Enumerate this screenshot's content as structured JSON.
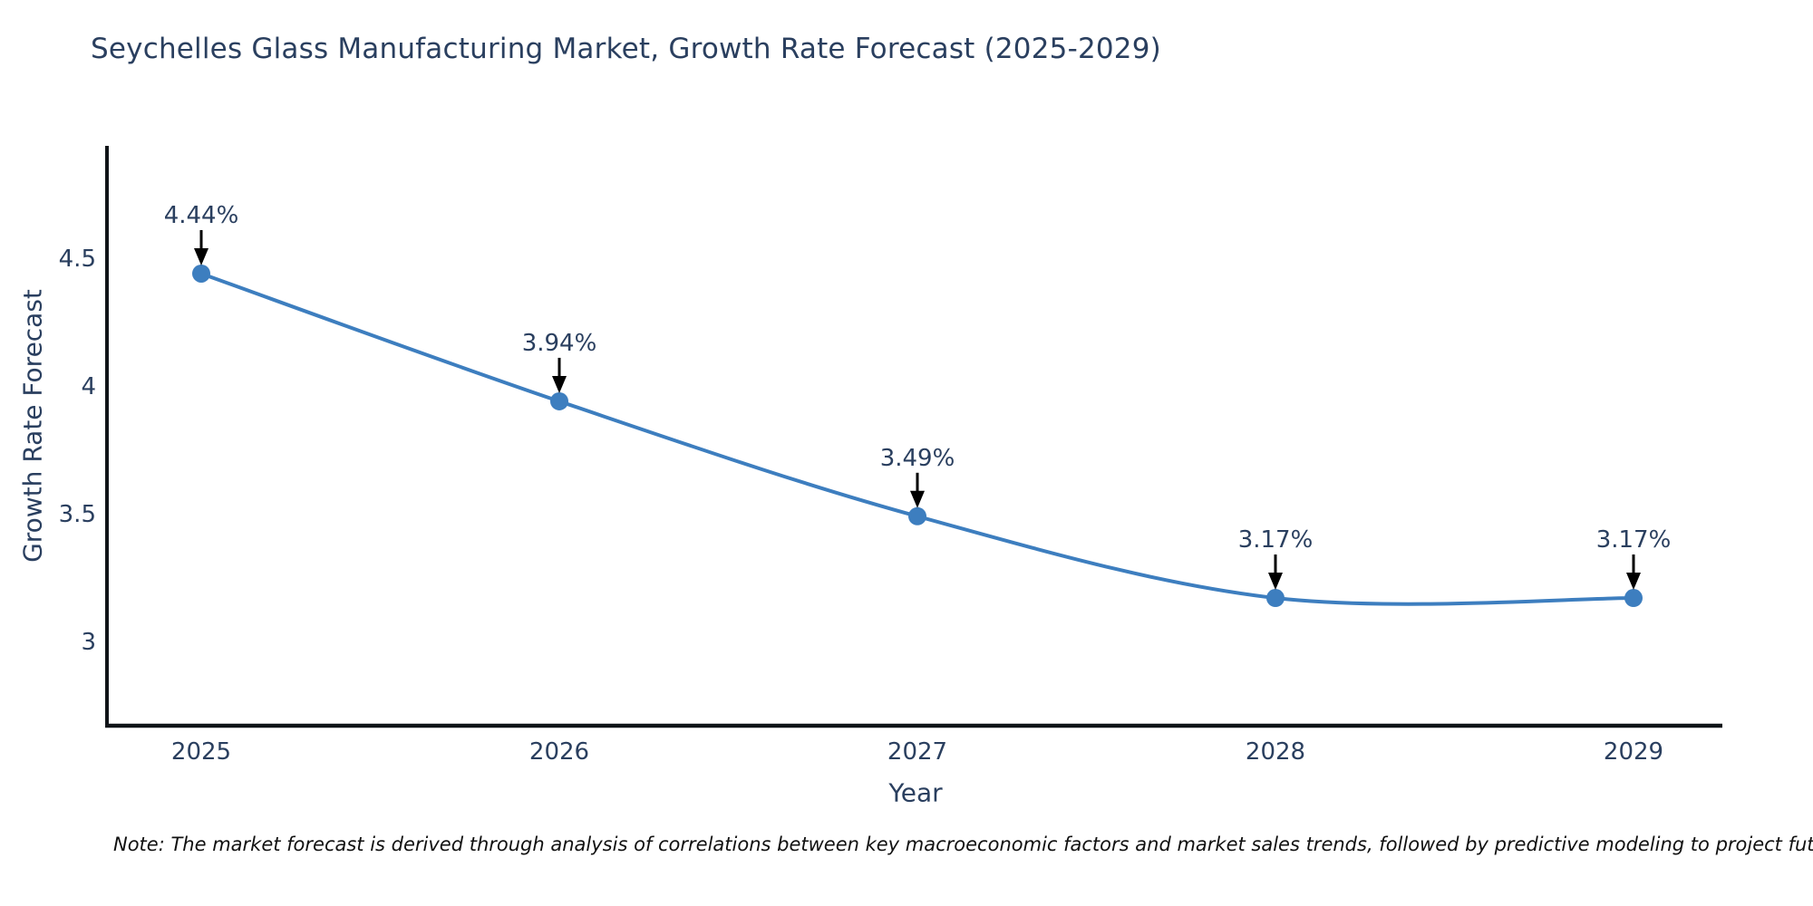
{
  "page": {
    "title": "Seychelles Glass Manufacturing Market, Growth Rate Forecast (2025-2029)",
    "note": "Note: The market forecast is derived through analysis of correlations between key macroeconomic factors and market sales trends, followed by predictive modeling to project future sales"
  },
  "chart_data": {
    "type": "line",
    "title": "Seychelles Glass Manufacturing Market, Growth Rate Forecast (2025-2029)",
    "categories": [
      "2025",
      "2026",
      "2027",
      "2028",
      "2029"
    ],
    "series": [
      {
        "name": "Growth Rate Forecast",
        "values": [
          4.44,
          3.94,
          3.49,
          3.17,
          3.17
        ],
        "labels": [
          "4.44%",
          "3.94%",
          "3.49%",
          "3.17%",
          "3.17%"
        ]
      }
    ],
    "xlabel": "Year",
    "ylabel": "Growth Rate Forecast",
    "yticks": [
      4.5,
      4,
      3.5,
      3
    ],
    "ylim": [
      2.67,
      4.94
    ],
    "grid": false,
    "legend": "none",
    "line_shape": "spline",
    "annotations": "value labels with downward arrows above each point",
    "colors": {
      "line": "#3d7ebf",
      "marker": "#3d7ebf",
      "text": "#2a3f5f",
      "axis": "#101418",
      "annotation_text": "#2a3f5f",
      "annotation_arrow": "#000000",
      "background": "#ffffff"
    }
  }
}
